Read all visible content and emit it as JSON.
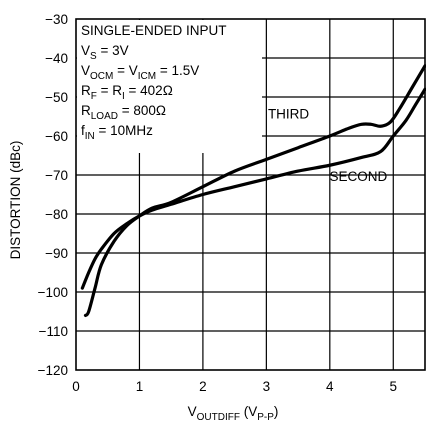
{
  "chart_data": {
    "type": "line",
    "xlabel": {
      "main": "V",
      "sub": "OUTDIFF",
      "paren_open": " (V",
      "paren_sub": "P-P",
      "paren_close": ")"
    },
    "ylabel": "DISTORTION (dBc)",
    "xlim": [
      0,
      5.5
    ],
    "ylim": [
      -120,
      -30
    ],
    "x_ticks": [
      0,
      1,
      2,
      3,
      4,
      5
    ],
    "y_ticks": [
      -120,
      -110,
      -100,
      -90,
      -80,
      -70,
      -60,
      -50,
      -40,
      -30
    ],
    "grid": true,
    "conditions": [
      {
        "parts": [
          {
            "t": "SINGLE-ENDED INPUT"
          }
        ]
      },
      {
        "parts": [
          {
            "t": "V"
          },
          {
            "t": "S",
            "sub": true
          },
          {
            "t": " = 3V"
          }
        ]
      },
      {
        "parts": [
          {
            "t": "V"
          },
          {
            "t": "OCM",
            "sub": true
          },
          {
            "t": " = V"
          },
          {
            "t": "ICM",
            "sub": true
          },
          {
            "t": " = 1.5V"
          }
        ]
      },
      {
        "parts": [
          {
            "t": "R"
          },
          {
            "t": "F",
            "sub": true
          },
          {
            "t": " = R"
          },
          {
            "t": "I",
            "sub": true
          },
          {
            "t": " = 402Ω"
          }
        ]
      },
      {
        "parts": [
          {
            "t": "R"
          },
          {
            "t": "LOAD",
            "sub": true
          },
          {
            "t": " = 800Ω"
          }
        ]
      },
      {
        "parts": [
          {
            "t": "f"
          },
          {
            "t": "IN",
            "sub": true
          },
          {
            "t": " = 10MHz"
          }
        ]
      }
    ],
    "series": [
      {
        "name": "THIRD",
        "x": [
          0.15,
          0.2,
          0.3,
          0.4,
          0.6,
          0.8,
          1.0,
          1.2,
          1.5,
          2.0,
          2.5,
          3.0,
          3.5,
          4.0,
          4.3,
          4.5,
          4.65,
          4.8,
          4.95,
          5.1,
          5.3,
          5.5
        ],
        "y": [
          -106,
          -105,
          -99,
          -93,
          -87,
          -83,
          -80.5,
          -78.5,
          -77,
          -73,
          -69,
          -66,
          -63,
          -60,
          -58,
          -57,
          -57,
          -57.5,
          -56.5,
          -53,
          -47.5,
          -42
        ]
      },
      {
        "name": "SECOND",
        "x": [
          0.1,
          0.2,
          0.3,
          0.4,
          0.6,
          0.8,
          1.0,
          1.2,
          1.5,
          2.0,
          2.5,
          3.0,
          3.5,
          4.0,
          4.5,
          4.8,
          5.0,
          5.2,
          5.35,
          5.5
        ],
        "y": [
          -99,
          -95,
          -91.5,
          -89,
          -85,
          -82.5,
          -80.5,
          -79,
          -77.5,
          -75,
          -73,
          -71,
          -69,
          -67.5,
          -65.5,
          -64,
          -60,
          -56,
          -52,
          -48
        ]
      }
    ]
  }
}
